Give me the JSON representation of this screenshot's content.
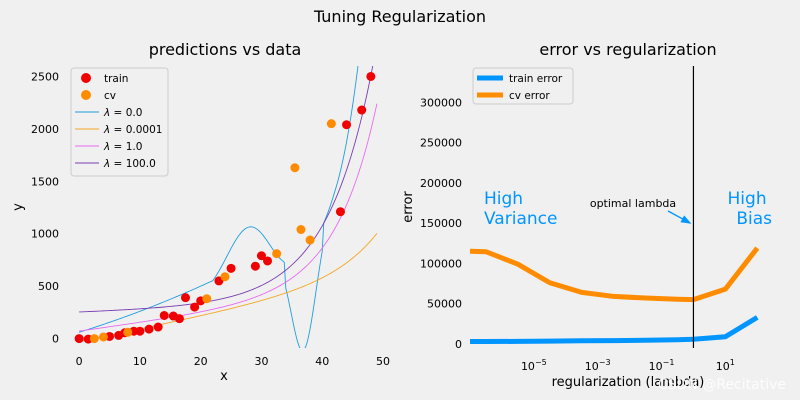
{
  "figure": {
    "suptitle": "Tuning Regularization",
    "watermark": "CSDN @Recitative",
    "background": "#f0f0f0"
  },
  "chart_data": [
    {
      "type": "scatter",
      "title": "predictions vs data",
      "xlabel": "x",
      "ylabel": "y",
      "xlim": [
        -2,
        50
      ],
      "ylim": [
        -90,
        2600
      ],
      "xticks": [
        0,
        10,
        20,
        30,
        40,
        50
      ],
      "yticks": [
        0,
        500,
        1000,
        1500,
        2000,
        2500
      ],
      "legend_position": "upper-left",
      "scatter_series": [
        {
          "name": "train",
          "color": "#f00000",
          "points": [
            [
              0,
              0
            ],
            [
              1.5,
              -5
            ],
            [
              5,
              20
            ],
            [
              6.5,
              30
            ],
            [
              7.5,
              55
            ],
            [
              9,
              70
            ],
            [
              10,
              70
            ],
            [
              11.5,
              90
            ],
            [
              13,
              110
            ],
            [
              14,
              220
            ],
            [
              15.5,
              215
            ],
            [
              16.5,
              190
            ],
            [
              17.5,
              390
            ],
            [
              19,
              300
            ],
            [
              20,
              360
            ],
            [
              23,
              550
            ],
            [
              25,
              670
            ],
            [
              29,
              690
            ],
            [
              30,
              790
            ],
            [
              31,
              740
            ],
            [
              43,
              1210
            ],
            [
              44,
              2040
            ],
            [
              46.5,
              2180
            ],
            [
              48,
              2500
            ]
          ]
        },
        {
          "name": "cv",
          "color": "#ff8c00",
          "points": [
            [
              2.5,
              0
            ],
            [
              4,
              15
            ],
            [
              8,
              60
            ],
            [
              21,
              380
            ],
            [
              24,
              590
            ],
            [
              32.5,
              810
            ],
            [
              35.5,
              1630
            ],
            [
              36.5,
              1040
            ],
            [
              38,
              940
            ],
            [
              41.5,
              2050
            ]
          ]
        }
      ],
      "line_series": [
        {
          "name": "λ = 0.0",
          "label_lambda": "λ",
          "label_eq": " = 0.0",
          "color": "#1f9de0"
        },
        {
          "name": "λ = 0.0001",
          "label_lambda": "λ",
          "label_eq": " = 0.0001",
          "color": "#f5a623"
        },
        {
          "name": "λ = 1.0",
          "label_lambda": "λ",
          "label_eq": " = 1.0",
          "color": "#e86bf0"
        },
        {
          "name": "λ = 100.0",
          "label_lambda": "λ",
          "label_eq": " = 100.0",
          "color": "#7a3cb0"
        }
      ]
    },
    {
      "type": "line",
      "title": "error vs regularization",
      "xlabel": "regularization (lambda)",
      "ylabel": "error",
      "xscale": "log",
      "xlim_log10": [
        -7,
        2.9
      ],
      "ylim": [
        -5000,
        345000
      ],
      "xticks_log10": [
        -5,
        -3,
        -1,
        1
      ],
      "xtick_label_base": "10",
      "xtick_label_exponents": [
        "−5",
        "−3",
        "−1",
        "1"
      ],
      "yticks": [
        0,
        50000,
        100000,
        150000,
        200000,
        250000,
        300000
      ],
      "legend_position": "upper-left",
      "series": [
        {
          "name": "train error",
          "color": "#0095ff",
          "x_log10": [
            -7,
            -6.5,
            -5.5,
            -4.5,
            -3.5,
            -2.5,
            -1.5,
            -0.5,
            0,
            1,
            2
          ],
          "y": [
            3000,
            3000,
            3200,
            3500,
            4000,
            4200,
            4600,
            5200,
            5800,
            9000,
            33000
          ]
        },
        {
          "name": "cv error",
          "color": "#ff8c00",
          "x_log10": [
            -7,
            -6.5,
            -5.5,
            -4.5,
            -3.5,
            -2.5,
            -1.5,
            -0.5,
            0,
            1,
            2
          ],
          "y": [
            115000,
            114500,
            99000,
            76000,
            64000,
            59000,
            57000,
            55500,
            55000,
            68000,
            119000
          ]
        }
      ],
      "vline_log10": 0,
      "annotations": {
        "optimal_label": "optimal lambda",
        "optimal_arrow_to": {
          "x_log10": -0.1,
          "y": 150000
        },
        "high_variance": [
          "High",
          "Variance"
        ],
        "high_bias": [
          "High",
          "Bias"
        ],
        "annotation_color": "#0095ff"
      }
    }
  ]
}
